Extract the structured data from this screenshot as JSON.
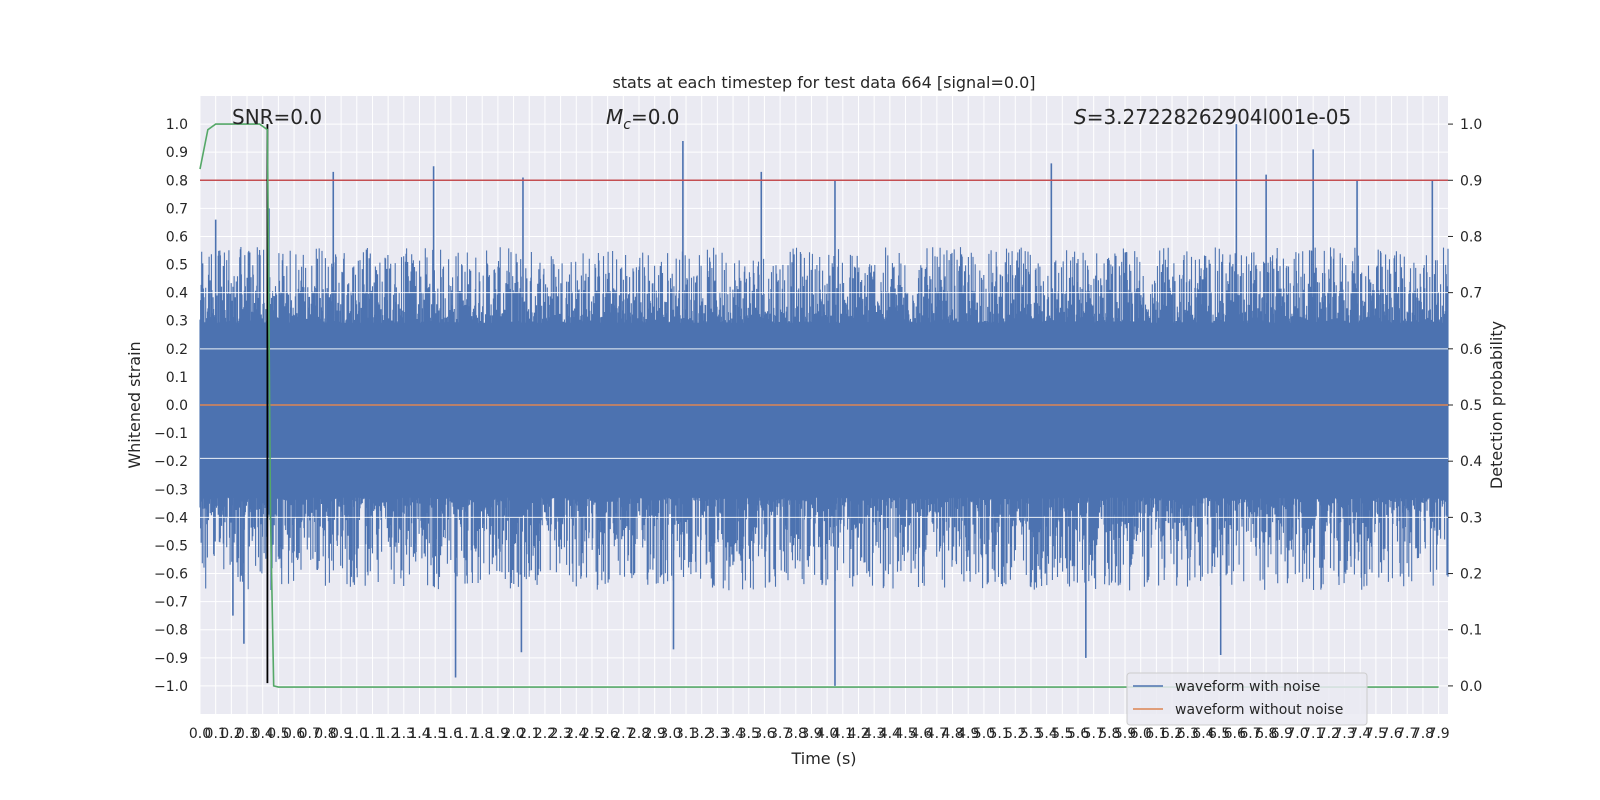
{
  "chart_data": {
    "type": "line",
    "title": "stats at each timestep for test data 664 [signal=0.0]",
    "xlabel": "Time (s)",
    "ylabel": "Whitened strain",
    "y2label": "Detection probability",
    "xlim": [
      0.0,
      7.96
    ],
    "ylim": [
      -1.1,
      1.1
    ],
    "y2lim": [
      -0.05,
      1.05
    ],
    "grid": true,
    "legend_position": "lower-right",
    "x_ticks": [
      "0.0",
      "0.1",
      "0.2",
      "0.3",
      "0.4",
      "0.5",
      "0.6",
      "0.7",
      "0.8",
      "0.9",
      "1.0",
      "1.1",
      "1.2",
      "1.3",
      "1.4",
      "1.5",
      "1.6",
      "1.7",
      "1.8",
      "1.9",
      "2.0",
      "2.1",
      "2.2",
      "2.3",
      "2.4",
      "2.5",
      "2.6",
      "2.7",
      "2.8",
      "2.9",
      "3.0",
      "3.1",
      "3.2",
      "3.3",
      "3.4",
      "3.5",
      "3.6",
      "3.7",
      "3.8",
      "3.9",
      "4.0",
      "4.1",
      "4.2",
      "4.3",
      "4.4",
      "4.5",
      "4.6",
      "4.7",
      "4.8",
      "4.9",
      "5.0",
      "5.1",
      "5.2",
      "5.3",
      "5.4",
      "5.5",
      "5.6",
      "5.7",
      "5.8",
      "5.9",
      "6.0",
      "6.1",
      "6.2",
      "6.3",
      "6.4",
      "6.5",
      "6.6",
      "6.7",
      "6.8",
      "6.9",
      "7.0",
      "7.1",
      "7.2",
      "7.3",
      "7.4",
      "7.5",
      "7.6",
      "7.7",
      "7.8",
      "7.9"
    ],
    "y_ticks": [
      "1.0",
      "0.9",
      "0.8",
      "0.7",
      "0.6",
      "0.5",
      "0.4",
      "0.3",
      "0.2",
      "0.1",
      "0.0",
      "−0.1",
      "−0.2",
      "−0.3",
      "−0.4",
      "−0.5",
      "−0.6",
      "−0.7",
      "−0.8",
      "−0.9",
      "−1.0"
    ],
    "y2_ticks": [
      "1.0",
      "0.9",
      "0.8",
      "0.7",
      "0.6",
      "0.5",
      "0.4",
      "0.3",
      "0.2",
      "0.1",
      "0.0"
    ],
    "series": [
      {
        "name": "waveform with noise",
        "color": "#4c72b0",
        "description_kind": "noise",
        "amplitude_envelope": [
          0.45,
          -0.55
        ],
        "spikes": [
          {
            "x": 0.1,
            "y": 0.66
          },
          {
            "x": 0.21,
            "y": -0.75
          },
          {
            "x": 0.28,
            "y": -0.85
          },
          {
            "x": 0.44,
            "y": 0.7
          },
          {
            "x": 0.85,
            "y": 0.83
          },
          {
            "x": 1.49,
            "y": 0.85
          },
          {
            "x": 1.63,
            "y": -0.97
          },
          {
            "x": 2.06,
            "y": 0.81
          },
          {
            "x": 2.05,
            "y": -0.88
          },
          {
            "x": 3.08,
            "y": 0.94
          },
          {
            "x": 3.02,
            "y": -0.87
          },
          {
            "x": 3.58,
            "y": 0.83
          },
          {
            "x": 4.05,
            "y": -1.0
          },
          {
            "x": 4.05,
            "y": 0.8
          },
          {
            "x": 5.43,
            "y": 0.86
          },
          {
            "x": 5.65,
            "y": -0.9
          },
          {
            "x": 6.51,
            "y": -0.89
          },
          {
            "x": 6.61,
            "y": 1.0
          },
          {
            "x": 6.8,
            "y": 0.82
          },
          {
            "x": 7.1,
            "y": 0.91
          },
          {
            "x": 7.38,
            "y": 0.8
          },
          {
            "x": 7.86,
            "y": 0.8
          }
        ]
      },
      {
        "name": "waveform without noise",
        "color": "#dd8452",
        "x": [
          0.0,
          7.96
        ],
        "y": [
          0.0,
          0.0
        ]
      },
      {
        "name": "",
        "color": "#55a868",
        "axis": "right",
        "x": [
          0.0,
          0.05,
          0.1,
          0.2,
          0.3,
          0.38,
          0.43,
          0.45,
          0.47,
          0.5,
          0.6,
          7.9
        ],
        "y": [
          0.92,
          0.99,
          1.0,
          1.0,
          1.0,
          1.0,
          0.99,
          0.3,
          0.0,
          -0.002,
          -0.002,
          -0.002
        ]
      }
    ],
    "threshold_line": {
      "y": 0.8,
      "color": "#c44e52"
    },
    "marker_line": {
      "x": 0.43,
      "color": "#000000",
      "y_range": [
        -0.99,
        1.0
      ]
    },
    "annotations": {
      "snr": "SNR=0.0",
      "mc_symbol": "M",
      "mc_sub": "c",
      "mc_value": "=0.0",
      "s_symbol": "S",
      "s_value": "=3.27228262904l001e-05"
    }
  }
}
